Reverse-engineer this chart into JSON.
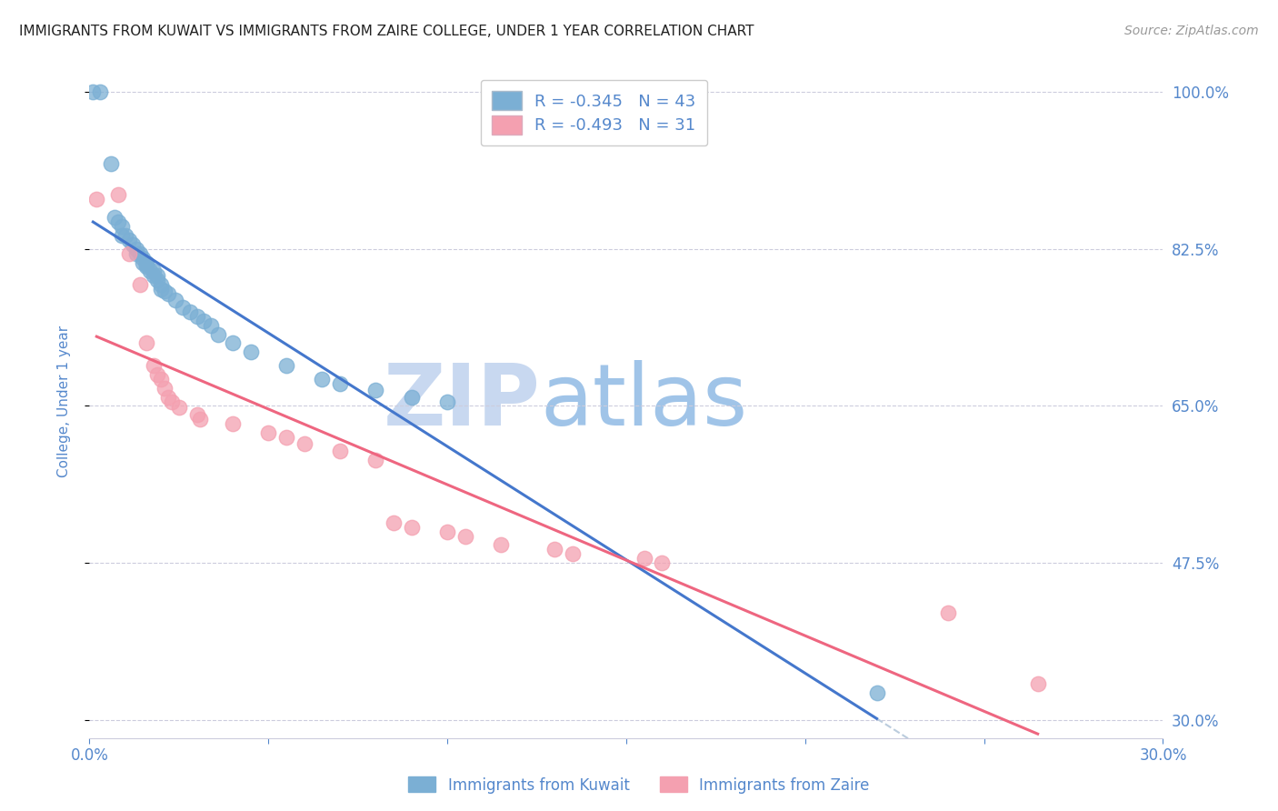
{
  "title": "IMMIGRANTS FROM KUWAIT VS IMMIGRANTS FROM ZAIRE COLLEGE, UNDER 1 YEAR CORRELATION CHART",
  "source": "Source: ZipAtlas.com",
  "ylabel": "College, Under 1 year",
  "xlim": [
    0.0,
    0.3
  ],
  "ylim": [
    0.28,
    1.03
  ],
  "right_yticks": [
    1.0,
    0.825,
    0.65,
    0.475,
    0.3
  ],
  "right_yticklabels": [
    "100.0%",
    "82.5%",
    "65.0%",
    "47.5%",
    "30.0%"
  ],
  "xticks": [
    0.0,
    0.05,
    0.1,
    0.15,
    0.2,
    0.25,
    0.3
  ],
  "xticklabels": [
    "0.0%",
    "",
    "",
    "",
    "",
    "",
    "30.0%"
  ],
  "legend_r_kuwait": "-0.345",
  "legend_n_kuwait": "43",
  "legend_r_zaire": "-0.493",
  "legend_n_zaire": "31",
  "kuwait_color": "#7BAFD4",
  "zaire_color": "#F4A0B0",
  "trendline_kuwait_color": "#4477CC",
  "trendline_zaire_color": "#EE6680",
  "dashed_line_color": "#BBCCDD",
  "grid_color": "#CCCCDD",
  "axis_label_color": "#5588CC",
  "title_color": "#222222",
  "kuwait_x": [
    0.001,
    0.003,
    0.006,
    0.007,
    0.008,
    0.009,
    0.009,
    0.01,
    0.011,
    0.012,
    0.013,
    0.013,
    0.014,
    0.015,
    0.015,
    0.016,
    0.016,
    0.016,
    0.017,
    0.018,
    0.018,
    0.019,
    0.019,
    0.02,
    0.02,
    0.021,
    0.022,
    0.024,
    0.026,
    0.028,
    0.03,
    0.032,
    0.034,
    0.036,
    0.04,
    0.045,
    0.055,
    0.065,
    0.07,
    0.08,
    0.09,
    0.1,
    0.22
  ],
  "kuwait_y": [
    1.0,
    1.0,
    0.92,
    0.86,
    0.855,
    0.85,
    0.84,
    0.84,
    0.835,
    0.83,
    0.825,
    0.82,
    0.82,
    0.815,
    0.81,
    0.81,
    0.808,
    0.805,
    0.8,
    0.8,
    0.795,
    0.795,
    0.79,
    0.785,
    0.78,
    0.778,
    0.775,
    0.768,
    0.76,
    0.755,
    0.75,
    0.745,
    0.74,
    0.73,
    0.72,
    0.71,
    0.695,
    0.68,
    0.675,
    0.668,
    0.66,
    0.655,
    0.33
  ],
  "zaire_x": [
    0.002,
    0.008,
    0.011,
    0.014,
    0.016,
    0.018,
    0.019,
    0.02,
    0.021,
    0.022,
    0.023,
    0.025,
    0.03,
    0.031,
    0.04,
    0.05,
    0.055,
    0.06,
    0.07,
    0.08,
    0.085,
    0.09,
    0.1,
    0.105,
    0.115,
    0.13,
    0.135,
    0.155,
    0.16,
    0.24,
    0.265
  ],
  "zaire_y": [
    0.88,
    0.885,
    0.82,
    0.785,
    0.72,
    0.695,
    0.685,
    0.68,
    0.67,
    0.66,
    0.655,
    0.648,
    0.64,
    0.635,
    0.63,
    0.62,
    0.615,
    0.608,
    0.6,
    0.59,
    0.52,
    0.515,
    0.51,
    0.505,
    0.495,
    0.49,
    0.485,
    0.48,
    0.475,
    0.42,
    0.34
  ],
  "watermark_zip": "ZIP",
  "watermark_atlas": "atlas",
  "watermark_color_zip": "#C8D8F0",
  "watermark_color_atlas": "#A0C4E8",
  "watermark_fontsize": 68
}
